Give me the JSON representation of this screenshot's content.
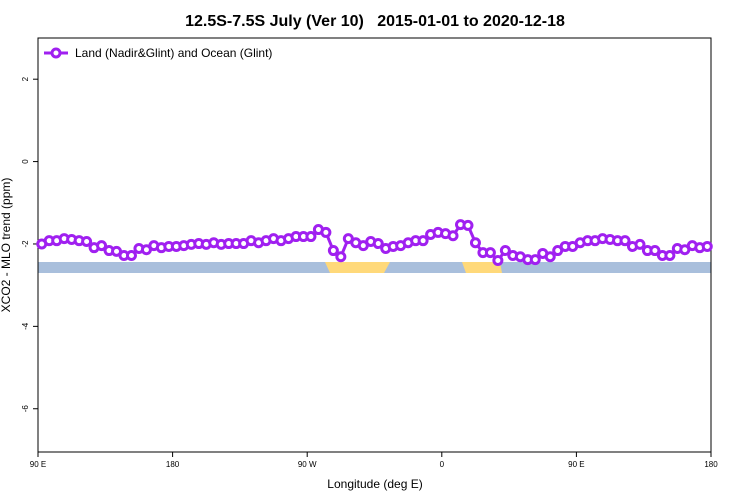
{
  "chart_data": {
    "type": "line",
    "title": "12.5S-7.5S July (Ver 10)   2015-01-01 to 2020-12-18",
    "x_label": "Longitude (deg E)",
    "y_label": "XCO2 - MLO trend (ppm)",
    "xlim": [
      90,
      540
    ],
    "ylim": [
      -7.05,
      3
    ],
    "xticks": [
      {
        "value": 90,
        "label": "90 E"
      },
      {
        "value": 180,
        "label": "180"
      },
      {
        "value": 270,
        "label": "90 W"
      },
      {
        "value": 360,
        "label": "0"
      },
      {
        "value": 450,
        "label": "90 E"
      },
      {
        "value": 540,
        "label": "180"
      }
    ],
    "yticks": [
      -6,
      -4,
      -2,
      0,
      2
    ],
    "legend": "top-left",
    "x": [
      92.5,
      97.5,
      102.5,
      107.5,
      112.5,
      117.5,
      122.5,
      127.5,
      132.5,
      137.5,
      142.5,
      147.5,
      152.5,
      157.5,
      162.5,
      167.5,
      172.5,
      177.5,
      182.5,
      187.5,
      192.5,
      197.5,
      202.5,
      207.5,
      212.5,
      217.5,
      222.5,
      227.5,
      232.5,
      237.5,
      242.5,
      247.5,
      252.5,
      257.5,
      262.5,
      267.5,
      272.5,
      277.5,
      282.5,
      287.5,
      292.5,
      297.5,
      302.5,
      307.5,
      312.5,
      317.5,
      322.5,
      327.5,
      332.5,
      337.5,
      342.5,
      347.5,
      352.5,
      357.5,
      362.5,
      367.5,
      372.5,
      377.5,
      382.5,
      387.5,
      392.5,
      397.5,
      402.5,
      407.5,
      412.5,
      417.5,
      422.5,
      427.5,
      432.5,
      437.5,
      442.5,
      447.5,
      452.5,
      457.5,
      462.5,
      467.5,
      472.5,
      477.5,
      482.5,
      487.5,
      492.5,
      497.5,
      502.5,
      507.5,
      512.5,
      517.5,
      522.5,
      527.5,
      532.5,
      537.5
    ],
    "series": [
      {
        "name": "Land (Nadir&Glint) and Ocean (Glint)",
        "color": "#a020f0",
        "values": [
          -2.0,
          -1.92,
          -1.92,
          -1.87,
          -1.89,
          -1.92,
          -1.94,
          -2.09,
          -2.04,
          -2.16,
          -2.18,
          -2.28,
          -2.28,
          -2.11,
          -2.14,
          -2.04,
          -2.09,
          -2.06,
          -2.06,
          -2.04,
          -2.01,
          -1.99,
          -2.01,
          -1.97,
          -2.01,
          -1.99,
          -1.99,
          -1.99,
          -1.92,
          -1.97,
          -1.92,
          -1.87,
          -1.92,
          -1.87,
          -1.82,
          -1.82,
          -1.82,
          -1.65,
          -1.72,
          -2.16,
          -2.31,
          -1.87,
          -1.97,
          -2.04,
          -1.94,
          -1.99,
          -2.11,
          -2.06,
          -2.04,
          -1.97,
          -1.92,
          -1.92,
          -1.77,
          -1.72,
          -1.75,
          -1.8,
          -1.53,
          -1.55,
          -1.97,
          -2.21,
          -2.21,
          -2.4,
          -2.16,
          -2.28,
          -2.31,
          -2.38,
          -2.38,
          -2.23,
          -2.31,
          -2.16,
          -2.06,
          -2.06,
          -1.97,
          -1.92,
          -1.92,
          -1.87,
          -1.89,
          -1.92,
          -1.92,
          -2.06,
          -2.01,
          -2.16,
          -2.16,
          -2.28,
          -2.28,
          -2.11,
          -2.14,
          -2.04,
          -2.09,
          -2.06
        ]
      }
    ]
  }
}
